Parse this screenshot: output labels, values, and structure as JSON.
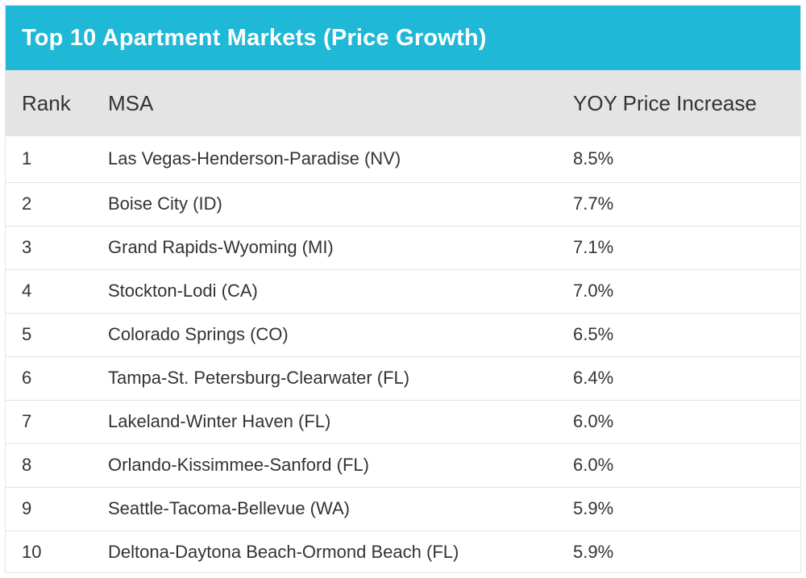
{
  "title": "Top 10 Apartment Markets (Price Growth)",
  "colors": {
    "header_bg": "#1fb8d6",
    "column_header_bg": "#e4e4e4",
    "row_divider": "#e3e3e3",
    "text": "#333333"
  },
  "columns": {
    "rank": "Rank",
    "msa": "MSA",
    "yoy": "YOY Price Increase"
  },
  "chart_data": {
    "type": "table",
    "title": "Top 10 Apartment Markets (Price Growth)",
    "columns": [
      "Rank",
      "MSA",
      "YOY Price Increase"
    ],
    "rows": [
      {
        "rank": "1",
        "msa": "Las Vegas-Henderson-Paradise (NV)",
        "yoy": "8.5%"
      },
      {
        "rank": "2",
        "msa": "Boise City (ID)",
        "yoy": "7.7%"
      },
      {
        "rank": "3",
        "msa": "Grand Rapids-Wyoming (MI)",
        "yoy": "7.1%"
      },
      {
        "rank": "4",
        "msa": "Stockton-Lodi (CA)",
        "yoy": "7.0%"
      },
      {
        "rank": "5",
        "msa": "Colorado Springs (CO)",
        "yoy": "6.5%"
      },
      {
        "rank": "6",
        "msa": "Tampa-St. Petersburg-Clearwater (FL)",
        "yoy": "6.4%"
      },
      {
        "rank": "7",
        "msa": "Lakeland-Winter Haven (FL)",
        "yoy": "6.0%"
      },
      {
        "rank": "8",
        "msa": "Orlando-Kissimmee-Sanford (FL)",
        "yoy": "6.0%"
      },
      {
        "rank": "9",
        "msa": "Seattle-Tacoma-Bellevue (WA)",
        "yoy": "5.9%"
      },
      {
        "rank": "10",
        "msa": "Deltona-Daytona Beach-Ormond Beach (FL)",
        "yoy": "5.9%"
      }
    ]
  }
}
